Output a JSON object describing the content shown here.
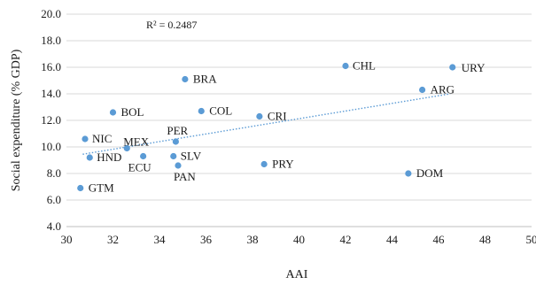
{
  "chart_data": {
    "type": "scatter",
    "xlabel": "AAI",
    "ylabel": "Social expenditure (% GDP)",
    "xlim": [
      30,
      50
    ],
    "ylim": [
      4.0,
      20.0
    ],
    "x_ticks": [
      "30",
      "32",
      "34",
      "36",
      "38",
      "40",
      "42",
      "44",
      "46",
      "48",
      "50"
    ],
    "y_ticks": [
      "4.0",
      "6.0",
      "8.0",
      "10.0",
      "12.0",
      "14.0",
      "16.0",
      "18.0",
      "20.0"
    ],
    "grid": "horizontal",
    "annotation": "R² = 0.2487",
    "trendline": {
      "style": "dotted",
      "x": [
        30.7,
        46.5
      ],
      "y": [
        9.45,
        14.0
      ]
    },
    "point_color": "#5b9bd5",
    "trend_color": "#5b9bd5",
    "points": [
      {
        "label": "URY",
        "x": 46.6,
        "y": 16.0
      },
      {
        "label": "CHL",
        "x": 42.0,
        "y": 16.1
      },
      {
        "label": "ARG",
        "x": 45.3,
        "y": 14.3
      },
      {
        "label": "BRA",
        "x": 35.1,
        "y": 15.1
      },
      {
        "label": "COL",
        "x": 35.8,
        "y": 12.7
      },
      {
        "label": "CRI",
        "x": 38.3,
        "y": 12.3
      },
      {
        "label": "BOL",
        "x": 32.0,
        "y": 12.6
      },
      {
        "label": "PER",
        "x": 34.7,
        "y": 10.4
      },
      {
        "label": "NIC",
        "x": 30.8,
        "y": 10.6
      },
      {
        "label": "MEX",
        "x": 32.6,
        "y": 9.9
      },
      {
        "label": "HND",
        "x": 31.0,
        "y": 9.2
      },
      {
        "label": "ECU",
        "x": 33.3,
        "y": 9.3
      },
      {
        "label": "SLV",
        "x": 34.6,
        "y": 9.3
      },
      {
        "label": "PAN",
        "x": 34.8,
        "y": 8.6
      },
      {
        "label": "PRY",
        "x": 38.5,
        "y": 8.7
      },
      {
        "label": "DOM",
        "x": 44.7,
        "y": 8.0
      },
      {
        "label": "GTM",
        "x": 30.6,
        "y": 6.9
      }
    ]
  }
}
